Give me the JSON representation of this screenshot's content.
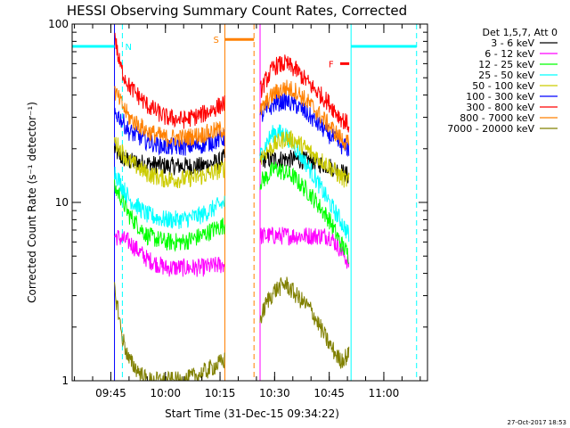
{
  "chart_data": {
    "type": "line",
    "title": "HESSI Observing Summary Count Rates, Corrected",
    "xlabel": "Start Time (31-Dec-15 09:34:22)",
    "ylabel": "Corrected Count Rate (s⁻¹ detector⁻¹)",
    "y_scale": "log",
    "ylim": [
      1,
      100
    ],
    "xlim": [
      "09:34:22",
      "11:12:00"
    ],
    "x_ticks": [
      "09:45",
      "10:00",
      "10:15",
      "10:30",
      "10:45",
      "11:00"
    ],
    "y_ticks": [
      "1",
      "10",
      "100"
    ],
    "grid": false,
    "legend_position": "outside-right",
    "legend_header": "Det 1,5,7, Att 0",
    "timestamp": "27-Oct-2017 18:53",
    "series": [
      {
        "name": "3 - 6 keV",
        "color": "#000000",
        "segments": [
          {
            "t": [
              "09:46:00",
              "09:47:30",
              "09:50:00",
              "10:00:00",
              "10:10:00",
              "10:15:00",
              "10:16:20"
            ],
            "v": [
              20,
              18,
              17,
              16,
              16,
              17,
              18
            ]
          },
          {
            "t": [
              "10:26:00",
              "10:30:00",
              "10:35:00",
              "10:40:00",
              "10:45:00",
              "10:48:00",
              "10:50:30"
            ],
            "v": [
              17.5,
              17.5,
              17.5,
              17,
              16,
              15,
              14
            ]
          }
        ]
      },
      {
        "name": "6 - 12 keV",
        "color": "#ff00ff",
        "segments": [
          {
            "t": [
              "09:46:00",
              "09:50:00",
              "09:55:00",
              "10:00:00",
              "10:05:00",
              "10:10:00",
              "10:16:20"
            ],
            "v": [
              6.5,
              6,
              4.8,
              4.3,
              4.3,
              4.3,
              4.5
            ]
          },
          {
            "t": [
              "10:26:00",
              "10:30:00",
              "10:35:00",
              "10:40:00",
              "10:45:00",
              "10:48:00",
              "10:50:30"
            ],
            "v": [
              6.5,
              6.5,
              6.5,
              6.5,
              6.5,
              5.5,
              4.5
            ]
          }
        ]
      },
      {
        "name": "12 - 25 keV",
        "color": "#00ff00",
        "segments": [
          {
            "t": [
              "09:46:00",
              "09:47:30",
              "09:50:00",
              "09:55:00",
              "10:00:00",
              "10:05:00",
              "10:10:00",
              "10:13:00",
              "10:16:20"
            ],
            "v": [
              12,
              11,
              8.5,
              6.5,
              6,
              6,
              6.5,
              7,
              7.5
            ]
          },
          {
            "t": [
              "10:26:00",
              "10:28:00",
              "10:30:00",
              "10:35:00",
              "10:40:00",
              "10:45:00",
              "10:48:00",
              "10:50:30"
            ],
            "v": [
              13,
              14,
              15.5,
              14,
              11,
              8,
              6,
              5
            ]
          }
        ]
      },
      {
        "name": "25 - 50 keV",
        "color": "#00ffff",
        "segments": [
          {
            "t": [
              "09:46:00",
              "09:47:30",
              "09:50:00",
              "09:55:00",
              "10:00:00",
              "10:05:00",
              "10:10:00",
              "10:16:20"
            ],
            "v": [
              15,
              13,
              10.5,
              8.5,
              8,
              8,
              8.5,
              10
            ]
          },
          {
            "t": [
              "10:26:00",
              "10:28:00",
              "10:30:00",
              "10:33:00",
              "10:36:00",
              "10:40:00",
              "10:45:00",
              "10:48:00",
              "10:50:30"
            ],
            "v": [
              18,
              22,
              25,
              24,
              20,
              15,
              10,
              8,
              6.5
            ]
          }
        ]
      },
      {
        "name": "50 - 100 keV",
        "color": "#cccc00",
        "segments": [
          {
            "t": [
              "09:46:00",
              "09:50:00",
              "09:55:00",
              "10:00:00",
              "10:05:00",
              "10:10:00",
              "10:16:20"
            ],
            "v": [
              22,
              17,
              14.5,
              13.5,
              13.5,
              14,
              15.5
            ]
          },
          {
            "t": [
              "10:26:00",
              "10:30:00",
              "10:33:00",
              "10:36:00",
              "10:40:00",
              "10:45:00",
              "10:48:00",
              "10:50:30"
            ],
            "v": [
              18,
              21,
              23,
              22,
              19,
              16,
              14,
              13
            ]
          }
        ]
      },
      {
        "name": "100 - 300 keV",
        "color": "#0000ff",
        "segments": [
          {
            "t": [
              "09:46:00",
              "09:47:30",
              "09:50:00",
              "09:55:00",
              "10:00:00",
              "10:05:00",
              "10:10:00",
              "10:16:20"
            ],
            "v": [
              32,
              30,
              25,
              22,
              20.5,
              20.5,
              21,
              23
            ]
          },
          {
            "t": [
              "10:26:00",
              "10:28:00",
              "10:30:00",
              "10:33:00",
              "10:36:00",
              "10:40:00",
              "10:45:00",
              "10:48:00",
              "10:50:30"
            ],
            "v": [
              30,
              33,
              36,
              37,
              35,
              30,
              24,
              21,
              20
            ]
          }
        ]
      },
      {
        "name": "300 - 800 keV",
        "color": "#ff0000",
        "segments": [
          {
            "t": [
              "09:46:00",
              "09:47:00",
              "09:48:00",
              "09:50:00",
              "09:55:00",
              "10:00:00",
              "10:05:00",
              "10:10:00",
              "10:16:20"
            ],
            "v": [
              90,
              65,
              55,
              45,
              35,
              30,
              29,
              31,
              36
            ]
          },
          {
            "t": [
              "10:26:00",
              "10:28:00",
              "10:30:00",
              "10:33:00",
              "10:36:00",
              "10:40:00",
              "10:45:00",
              "10:48:00",
              "10:50:30"
            ],
            "v": [
              42,
              50,
              58,
              60,
              55,
              45,
              36,
              30,
              27
            ]
          }
        ]
      },
      {
        "name": "800 - 7000 keV",
        "color": "#ff8000",
        "segments": [
          {
            "t": [
              "09:46:00",
              "09:47:30",
              "09:50:00",
              "09:55:00",
              "10:00:00",
              "10:05:00",
              "10:10:00",
              "10:16:20"
            ],
            "v": [
              42,
              37,
              30,
              25,
              23,
              23,
              24,
              26
            ]
          },
          {
            "t": [
              "10:26:00",
              "10:28:00",
              "10:30:00",
              "10:33:00",
              "10:36:00",
              "10:40:00",
              "10:45:00",
              "10:48:00",
              "10:50:30"
            ],
            "v": [
              32,
              37,
              41,
              44,
              42,
              35,
              27,
              23,
              21
            ]
          }
        ]
      },
      {
        "name": "7000 - 20000 keV",
        "color": "#808000",
        "segments": [
          {
            "t": [
              "09:46:00",
              "09:47:00",
              "09:48:00",
              "09:50:00",
              "09:55:00",
              "10:00:00",
              "10:05:00",
              "10:10:00",
              "10:16:20"
            ],
            "v": [
              3.2,
              2.5,
              1.8,
              1.3,
              1,
              1,
              1,
              1.1,
              1.3
            ]
          },
          {
            "t": [
              "10:26:00",
              "10:28:00",
              "10:30:00",
              "10:33:00",
              "10:36:00",
              "10:40:00",
              "10:45:00",
              "10:48:00",
              "10:50:30"
            ],
            "v": [
              2.2,
              2.8,
              3.2,
              3.5,
              3,
              2.5,
              1.6,
              1.3,
              1.4
            ]
          }
        ]
      }
    ],
    "annotations": {
      "night_label": "N",
      "saa_label": "S",
      "flare_label": "F",
      "night_color": "#00ffff",
      "saa_color": "#ff8000",
      "flare_color": "#ff0000",
      "night_intervals": [
        [
          "09:34:22",
          "09:46:00"
        ],
        [
          "10:51:00",
          "11:09:00"
        ]
      ],
      "night_level": 75,
      "saa_interval": [
        "10:16:20",
        "10:24:20"
      ],
      "saa_level": 82,
      "flare_interval": [
        "10:48:00",
        "10:50:30"
      ],
      "flare_level": 60,
      "vertical_lines": [
        {
          "t": "09:46:00",
          "color": "#0000ff",
          "dashed": false
        },
        {
          "t": "09:48:10",
          "color": "#00ffff",
          "dashed": true
        },
        {
          "t": "10:16:20",
          "color": "#ff8000",
          "dashed": false
        },
        {
          "t": "10:24:20",
          "color": "#ff8000",
          "dashed": true
        },
        {
          "t": "10:26:00",
          "color": "#ff00ff",
          "dashed": false
        },
        {
          "t": "10:51:00",
          "color": "#00ffff",
          "dashed": false
        },
        {
          "t": "11:09:00",
          "color": "#00ffff",
          "dashed": true
        }
      ]
    }
  }
}
